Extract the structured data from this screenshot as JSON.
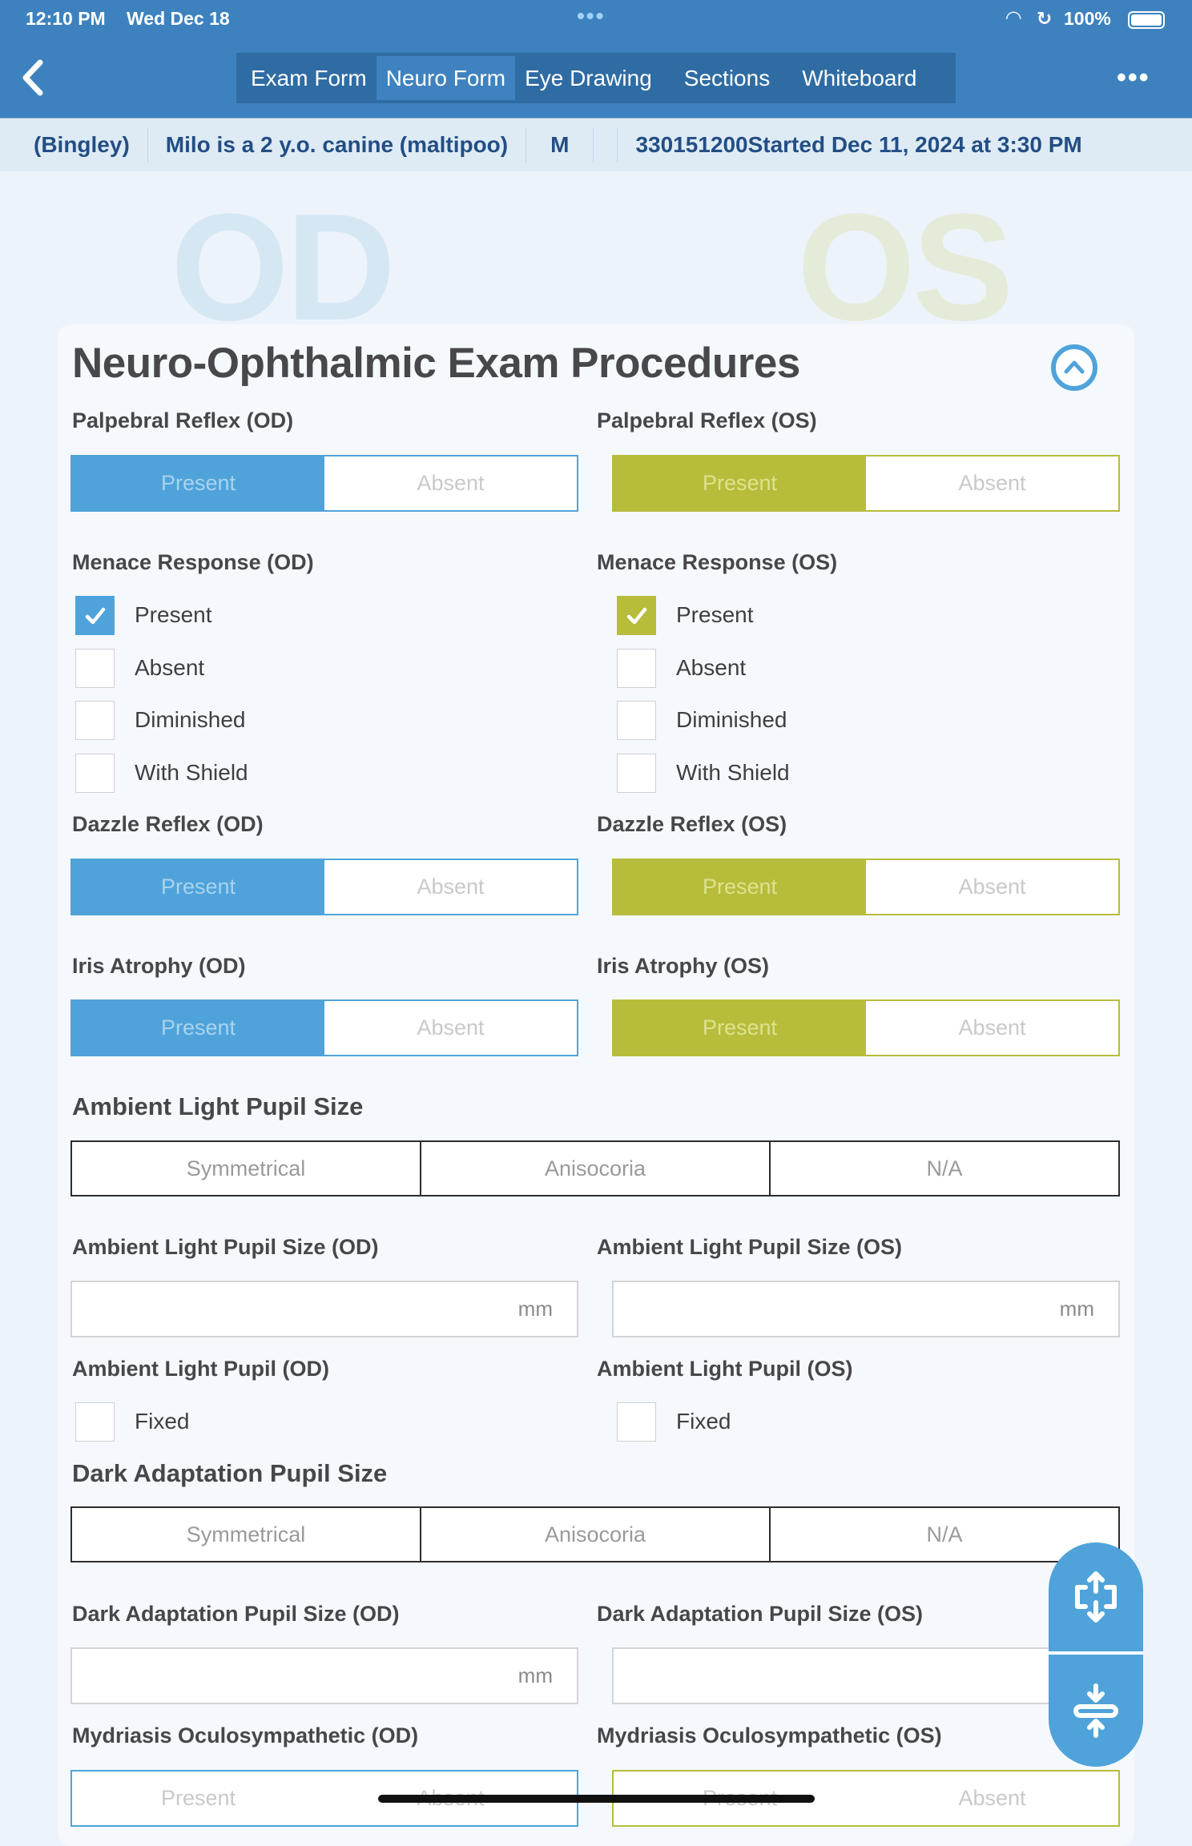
{
  "status_bar": {
    "time": "12:10 PM",
    "date": "Wed Dec 18",
    "battery": "100%"
  },
  "nav": {
    "tabs": [
      "Exam Form",
      "Neuro Form",
      "Eye Drawing",
      "Sections",
      "Whiteboard"
    ],
    "active_tab": "Neuro Form"
  },
  "patient": {
    "owner": "(Bingley)",
    "description": "Milo is a 2 y.o. canine (maltipoo)",
    "sex": "M",
    "record": "330151200Started Dec 11, 2024 at 3:30 PM"
  },
  "watermarks": {
    "od": "OD",
    "os": "OS"
  },
  "section": {
    "title": "Neuro-Ophthalmic Exam Procedures"
  },
  "colors": {
    "od_accent": "#4fa3da",
    "os_accent": "#b7bd3b",
    "header": "#3d82bf"
  },
  "fields": {
    "palpebral": {
      "od": {
        "label": "Palpebral Reflex (OD)",
        "options": [
          "Present",
          "Absent"
        ],
        "selected": "Present"
      },
      "os": {
        "label": "Palpebral Reflex (OS)",
        "options": [
          "Present",
          "Absent"
        ],
        "selected": "Present"
      }
    },
    "menace": {
      "od": {
        "label": "Menace Response (OD)",
        "options": [
          {
            "label": "Present",
            "checked": true
          },
          {
            "label": "Absent",
            "checked": false
          },
          {
            "label": "Diminished",
            "checked": false
          },
          {
            "label": "With Shield",
            "checked": false
          }
        ]
      },
      "os": {
        "label": "Menace Response (OS)",
        "options": [
          {
            "label": "Present",
            "checked": true
          },
          {
            "label": "Absent",
            "checked": false
          },
          {
            "label": "Diminished",
            "checked": false
          },
          {
            "label": "With Shield",
            "checked": false
          }
        ]
      }
    },
    "dazzle": {
      "od": {
        "label": "Dazzle Reflex (OD)",
        "options": [
          "Present",
          "Absent"
        ],
        "selected": "Present"
      },
      "os": {
        "label": "Dazzle Reflex (OS)",
        "options": [
          "Present",
          "Absent"
        ],
        "selected": "Present"
      }
    },
    "iris": {
      "od": {
        "label": "Iris Atrophy (OD)",
        "options": [
          "Present",
          "Absent"
        ],
        "selected": "Present"
      },
      "os": {
        "label": "Iris Atrophy (OS)",
        "options": [
          "Present",
          "Absent"
        ],
        "selected": "Present"
      }
    },
    "ambient_size": {
      "label": "Ambient Light Pupil Size",
      "options": [
        "Symmetrical",
        "Anisocoria",
        "N/A"
      ]
    },
    "ambient_size_eye": {
      "od": {
        "label": "Ambient Light Pupil Size (OD)",
        "value": "",
        "unit": "mm"
      },
      "os": {
        "label": "Ambient Light Pupil Size (OS)",
        "value": "",
        "unit": "mm"
      }
    },
    "ambient_pupil": {
      "od": {
        "label": "Ambient Light Pupil (OD)",
        "options": [
          {
            "label": "Fixed",
            "checked": false
          }
        ]
      },
      "os": {
        "label": "Ambient Light Pupil (OS)",
        "options": [
          {
            "label": "Fixed",
            "checked": false
          }
        ]
      }
    },
    "dark_size": {
      "label": "Dark Adaptation Pupil Size",
      "options": [
        "Symmetrical",
        "Anisocoria",
        "N/A"
      ]
    },
    "dark_size_eye": {
      "od": {
        "label": "Dark Adaptation Pupil Size (OD)",
        "value": "",
        "unit": "mm"
      },
      "os": {
        "label": "Dark Adaptation Pupil Size (OS)",
        "value": "",
        "unit": ""
      }
    },
    "mydriasis": {
      "od": {
        "label": "Mydriasis Oculosympathetic (OD)",
        "options": [
          "Present",
          "Absent"
        ],
        "selected": ""
      },
      "os": {
        "label": "Mydriasis Oculosympathetic (OS)",
        "options": [
          "Present",
          "Absent"
        ],
        "selected": ""
      }
    }
  }
}
